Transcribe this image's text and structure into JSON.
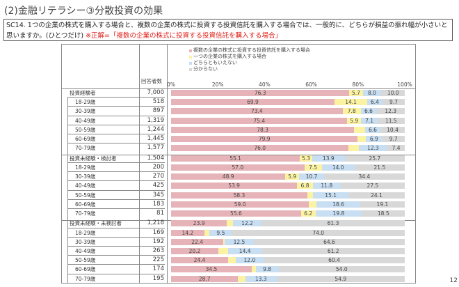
{
  "title": "(2)金融リテラシー③分散投資の効果",
  "question": {
    "text": "SC14. 1つの企業の株式を購入する場合と、複数の企業の株式に投資する投資信託を購入する場合では、一般的に、どちらが損益の振れ幅が小さいと思いますか。(ひとつだけ)",
    "answer": "※正解=「複数の企業の株式に投資する投資信託を購入する場合」"
  },
  "page_number": "12",
  "chart_data": {
    "type": "bar",
    "orientation": "horizontal",
    "stacked": true,
    "xlim": [
      0,
      100
    ],
    "grid": false,
    "legend_position": "top",
    "n_header": "回答者数",
    "x_ticks": [
      "0%",
      "20%",
      "40%",
      "60%",
      "80%",
      "100%"
    ],
    "series": [
      {
        "name": "複数の企業の株式に投資する投資信託を購入する場合",
        "color": "#e6b4b8"
      },
      {
        "name": "一つの企業の株式を購入する場合",
        "color": "#fbf3a2"
      },
      {
        "name": "どちらともいえない",
        "color": "#c7def3"
      },
      {
        "name": "分からない",
        "color": "#d8d8d8"
      }
    ],
    "rows": [
      {
        "label": "投資経験者",
        "group": true,
        "n": "7,000",
        "values": [
          76.3,
          5.7,
          8.0,
          10.0
        ]
      },
      {
        "label": "18-29歳",
        "n": "518",
        "values": [
          69.9,
          14.1,
          6.4,
          9.7
        ]
      },
      {
        "label": "30-39歳",
        "n": "897",
        "values": [
          73.4,
          7.8,
          6.6,
          12.3
        ]
      },
      {
        "label": "40-49歳",
        "n": "1,319",
        "values": [
          75.4,
          5.9,
          7.1,
          11.5
        ]
      },
      {
        "label": "50-59歳",
        "n": "1,244",
        "values": [
          78.3,
          4.7,
          6.6,
          10.4
        ]
      },
      {
        "label": "60-69歳",
        "n": "1,445",
        "values": [
          79.9,
          3.5,
          6.9,
          9.7
        ]
      },
      {
        "label": "70-79歳",
        "n": "1,577",
        "values": [
          76.0,
          4.3,
          12.3,
          7.4
        ]
      },
      {
        "label": "投資未経験・検討者",
        "group": true,
        "n": "1,504",
        "values": [
          55.1,
          5.3,
          13.9,
          25.7
        ]
      },
      {
        "label": "18-29歳",
        "n": "200",
        "values": [
          57.0,
          7.5,
          14.0,
          21.5
        ]
      },
      {
        "label": "30-39歳",
        "n": "270",
        "values": [
          48.9,
          5.9,
          10.7,
          34.4
        ]
      },
      {
        "label": "40-49歳",
        "n": "425",
        "values": [
          53.9,
          6.8,
          11.8,
          27.5
        ]
      },
      {
        "label": "50-59歳",
        "n": "345",
        "values": [
          58.3,
          2.5,
          15.1,
          24.1
        ]
      },
      {
        "label": "60-69歳",
        "n": "183",
        "values": [
          59.0,
          3.3,
          18.6,
          19.1
        ]
      },
      {
        "label": "70-79歳",
        "n": "81",
        "values": [
          55.6,
          6.2,
          19.8,
          18.5
        ]
      },
      {
        "label": "投資未経験・未検討者",
        "group": true,
        "n": "1,218",
        "values": [
          23.9,
          2.6,
          12.2,
          61.3
        ]
      },
      {
        "label": "18-29歳",
        "n": "169",
        "values": [
          14.2,
          2.3,
          9.5,
          74.0
        ]
      },
      {
        "label": "30-39歳",
        "n": "192",
        "values": [
          22.4,
          0.5,
          12.5,
          64.6
        ]
      },
      {
        "label": "40-49歳",
        "n": "263",
        "values": [
          20.2,
          4.2,
          14.4,
          61.2
        ]
      },
      {
        "label": "50-59歳",
        "n": "225",
        "values": [
          24.4,
          3.2,
          12.0,
          60.4
        ]
      },
      {
        "label": "60-69歳",
        "n": "174",
        "values": [
          34.5,
          1.7,
          9.8,
          54.0
        ]
      },
      {
        "label": "70-79歳",
        "n": "195",
        "values": [
          28.7,
          3.1,
          13.3,
          54.9
        ]
      }
    ]
  }
}
